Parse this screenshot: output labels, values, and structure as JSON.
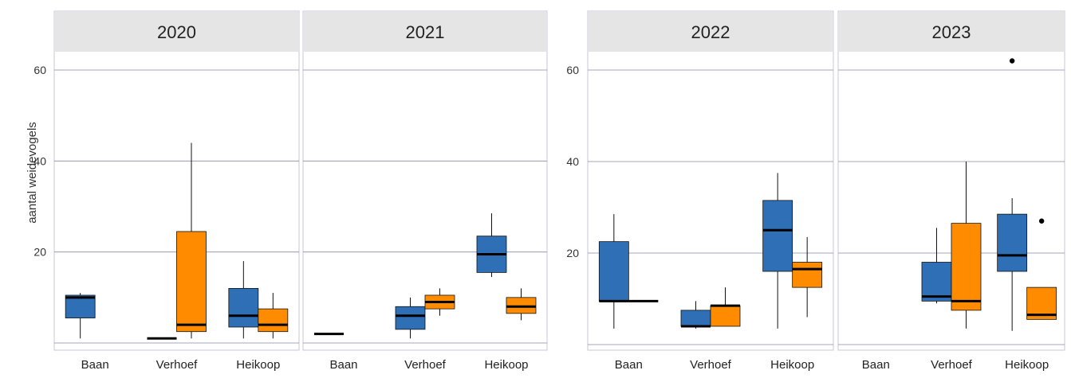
{
  "chart_data": [
    {
      "type": "boxplot",
      "ylabel": "aantal weidevogels",
      "y_ticks": [
        20,
        40,
        60
      ],
      "ylim": [
        -1,
        70
      ],
      "categories": [
        "Baan",
        "Verhoef",
        "Heikoop"
      ],
      "series_colors": [
        "#2e6fb5",
        "#ff8c00"
      ],
      "grid": true,
      "panels": [
        {
          "title": "2020",
          "boxes": [
            {
              "category": "Baan",
              "series": 0,
              "min": 1,
              "q1": 5.5,
              "median": 10,
              "q3": 10.5,
              "max": 11,
              "outliers": []
            },
            {
              "category": "Verhoef",
              "series": 0,
              "min": 1,
              "q1": 1,
              "median": 1,
              "q3": 1,
              "max": 1,
              "outliers": []
            },
            {
              "category": "Verhoef",
              "series": 1,
              "min": 1,
              "q1": 2.5,
              "median": 4,
              "q3": 24.5,
              "max": 44,
              "outliers": []
            },
            {
              "category": "Heikoop",
              "series": 0,
              "min": 1,
              "q1": 3.5,
              "median": 6,
              "q3": 12,
              "max": 18,
              "outliers": []
            },
            {
              "category": "Heikoop",
              "series": 1,
              "min": 1,
              "q1": 2.5,
              "median": 4,
              "q3": 7.5,
              "max": 11,
              "outliers": []
            }
          ]
        },
        {
          "title": "2021",
          "boxes": [
            {
              "category": "Baan",
              "series": 0,
              "min": 2,
              "q1": 2,
              "median": 2,
              "q3": 2,
              "max": 2,
              "outliers": []
            },
            {
              "category": "Verhoef",
              "series": 0,
              "min": 1,
              "q1": 3,
              "median": 6,
              "q3": 8,
              "max": 10,
              "outliers": []
            },
            {
              "category": "Verhoef",
              "series": 1,
              "min": 6,
              "q1": 7.5,
              "median": 9,
              "q3": 10.5,
              "max": 12,
              "outliers": []
            },
            {
              "category": "Heikoop",
              "series": 0,
              "min": 14.5,
              "q1": 15.5,
              "median": 19.5,
              "q3": 23.5,
              "max": 28.5,
              "outliers": []
            },
            {
              "category": "Heikoop",
              "series": 1,
              "min": 5,
              "q1": 6.5,
              "median": 8,
              "q3": 10,
              "max": 12,
              "outliers": []
            }
          ]
        }
      ]
    },
    {
      "type": "boxplot",
      "y_ticks": [
        20,
        40,
        60
      ],
      "ylim": [
        -1,
        70
      ],
      "categories": [
        "Baan",
        "Verhoef",
        "Heikoop"
      ],
      "series_colors": [
        "#2e6fb5",
        "#ff8c00"
      ],
      "grid": true,
      "panels": [
        {
          "title": "2022",
          "boxes": [
            {
              "category": "Baan",
              "series": 0,
              "min": 3.5,
              "q1": 9.5,
              "median": 9.5,
              "q3": 22.5,
              "max": 28.5,
              "outliers": []
            },
            {
              "category": "Baan",
              "series": 1,
              "min": 9.5,
              "q1": 9.5,
              "median": 9.5,
              "q3": 9.5,
              "max": 9.5,
              "outliers": []
            },
            {
              "category": "Verhoef",
              "series": 0,
              "min": 3.5,
              "q1": 4,
              "median": 4,
              "q3": 7.5,
              "max": 9.5,
              "outliers": []
            },
            {
              "category": "Verhoef",
              "series": 1,
              "min": 4,
              "q1": 4,
              "median": 8.5,
              "q3": 8.5,
              "max": 12.5,
              "outliers": []
            },
            {
              "category": "Heikoop",
              "series": 0,
              "min": 3.5,
              "q1": 16,
              "median": 25,
              "q3": 31.5,
              "max": 37.5,
              "outliers": []
            },
            {
              "category": "Heikoop",
              "series": 1,
              "min": 6,
              "q1": 12.5,
              "median": 16.5,
              "q3": 18,
              "max": 23.5,
              "outliers": []
            }
          ]
        },
        {
          "title": "2023",
          "boxes": [
            {
              "category": "Verhoef",
              "series": 0,
              "min": 9,
              "q1": 9.5,
              "median": 10.5,
              "q3": 18,
              "max": 25.5,
              "outliers": []
            },
            {
              "category": "Verhoef",
              "series": 1,
              "min": 3.5,
              "q1": 7.5,
              "median": 9.5,
              "q3": 26.5,
              "max": 40,
              "outliers": []
            },
            {
              "category": "Heikoop",
              "series": 0,
              "min": 3,
              "q1": 16,
              "median": 19.5,
              "q3": 28.5,
              "max": 32,
              "outliers": [
                62
              ]
            },
            {
              "category": "Heikoop",
              "series": 1,
              "min": 5.5,
              "q1": 5.5,
              "median": 6.5,
              "q3": 12.5,
              "max": 12.5,
              "outliers": [
                27
              ]
            }
          ]
        }
      ]
    }
  ]
}
